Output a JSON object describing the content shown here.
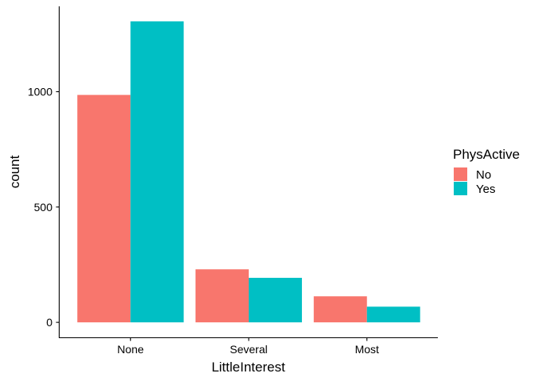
{
  "chart_data": {
    "type": "bar",
    "categories": [
      "None",
      "Several",
      "Most"
    ],
    "series": [
      {
        "name": "No",
        "values": [
          986,
          230,
          113
        ],
        "color": "#F8766D"
      },
      {
        "name": "Yes",
        "values": [
          1305,
          193,
          68
        ],
        "color": "#00BFC4"
      }
    ],
    "xlabel": "LittleInterest",
    "ylabel": "count",
    "ylim": [
      -65,
      1370
    ],
    "yticks": [
      0,
      500,
      1000
    ],
    "legend": {
      "title": "PhysActive",
      "position": "right"
    },
    "grid": false
  }
}
